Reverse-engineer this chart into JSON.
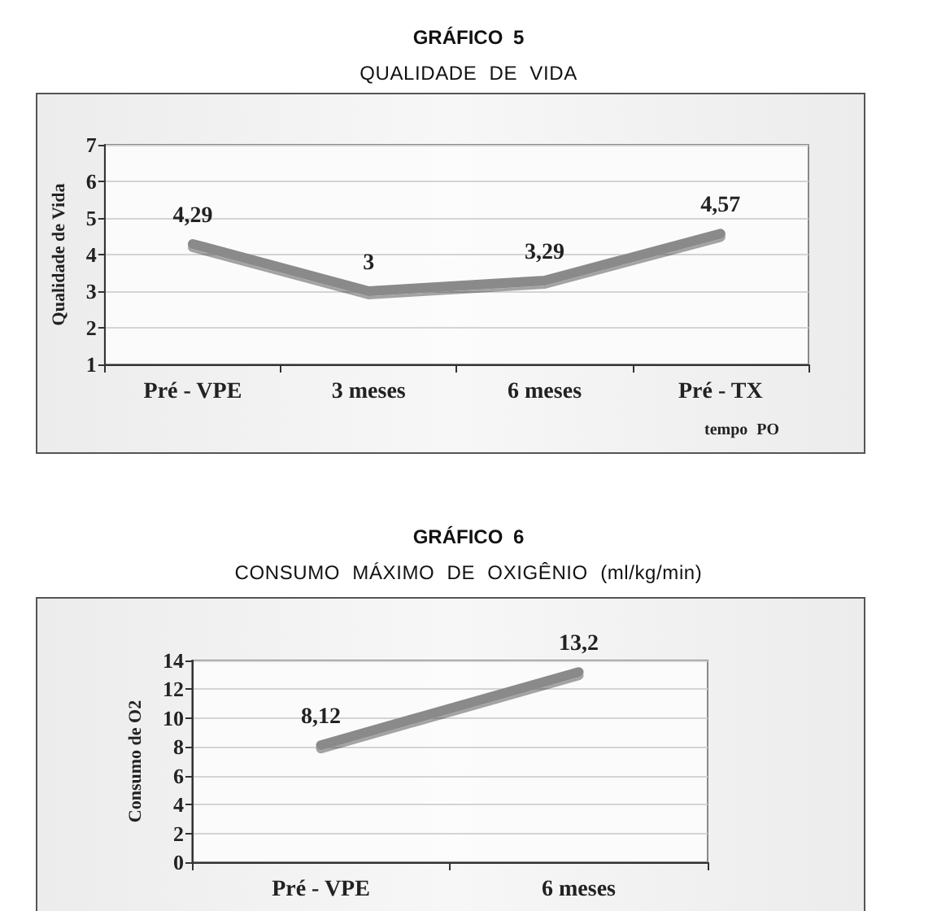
{
  "chart_data": [
    {
      "type": "line",
      "title": "GRÁFICO 5",
      "subtitle": "QUALIDADE DE VIDA",
      "xlabel": "tempo PO",
      "ylabel": "Qualidade de Vida",
      "categories": [
        "Pré - VPE",
        "3 meses",
        "6 meses",
        "Pré - TX"
      ],
      "values": [
        4.29,
        3,
        3.29,
        4.57
      ],
      "value_labels": [
        "4,29",
        "3",
        "3,29",
        "4,57"
      ],
      "color": "#8a8a8a",
      "ylim": [
        1,
        7
      ],
      "yticks": [
        1,
        2,
        3,
        4,
        5,
        6,
        7
      ],
      "grid": "y",
      "marker": "none",
      "line_style": "solid"
    },
    {
      "type": "line",
      "title": "GRÁFICO 6",
      "subtitle": "CONSUMO MÁXIMO DE OXIGÊNIO (ml/kg/min)",
      "ylabel": "Consumo de O2",
      "categories": [
        "Pré - VPE",
        "6 meses"
      ],
      "values": [
        8.12,
        13.2
      ],
      "value_labels": [
        "8,12",
        "13,2"
      ],
      "color": "#8a8a8a",
      "ylim": [
        0,
        14
      ],
      "yticks": [
        0,
        2,
        4,
        6,
        8,
        10,
        12,
        14
      ],
      "grid": "y",
      "marker": "none",
      "line_style": "solid"
    }
  ]
}
